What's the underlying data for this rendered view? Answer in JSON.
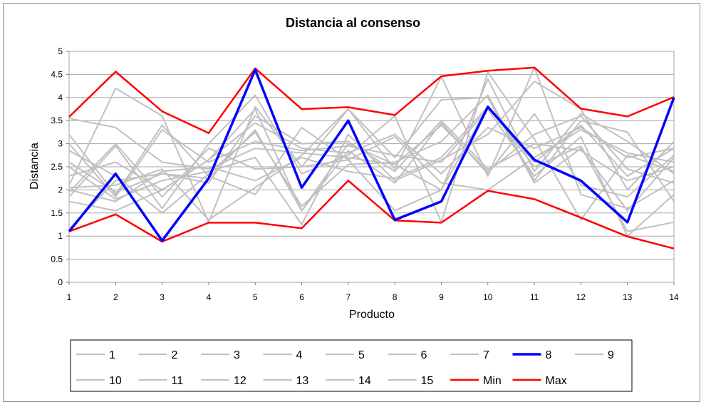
{
  "chart_data": {
    "type": "line",
    "title": "Distancia al consenso",
    "xlabel": "Producto",
    "ylabel": "Distancia",
    "x": [
      1,
      2,
      3,
      4,
      5,
      6,
      7,
      8,
      9,
      10,
      11,
      12,
      13,
      14
    ],
    "x_tick_labels": [
      "1",
      "2",
      "3",
      "4",
      "5",
      "6",
      "7",
      "8",
      "9",
      "10",
      "11",
      "12",
      "13",
      "14"
    ],
    "y_tick_labels": [
      "0",
      "0.5",
      "1",
      "1.5",
      "2",
      "2.5",
      "3",
      "3.5",
      "4",
      "4.5",
      "5"
    ],
    "ylim": [
      0,
      5
    ],
    "grid": "horizontal",
    "legend_position": "bottom",
    "series": [
      {
        "name": "1",
        "color": "#c0c0c0",
        "values": [
          3.55,
          3.35,
          2.6,
          2.45,
          2.9,
          2.8,
          2.7,
          2.55,
          3.4,
          2.4,
          3.2,
          3.6,
          2.45,
          2.15
        ]
      },
      {
        "name": "2",
        "color": "#c0c0c0",
        "values": [
          1.15,
          2.2,
          2.35,
          2.25,
          3.3,
          1.55,
          3.0,
          2.55,
          2.0,
          3.8,
          2.6,
          3.4,
          2.3,
          2.9
        ]
      },
      {
        "name": "3",
        "color": "#c0c0c0",
        "values": [
          3.2,
          1.9,
          3.4,
          2.3,
          1.9,
          3.35,
          2.65,
          3.15,
          2.15,
          2.0,
          2.7,
          3.3,
          2.8,
          2.6
        ]
      },
      {
        "name": "4",
        "color": "#c0c0c0",
        "values": [
          2.1,
          4.2,
          3.6,
          1.3,
          3.8,
          2.5,
          3.75,
          2.45,
          4.45,
          2.3,
          4.65,
          1.9,
          1.6,
          2.2
        ]
      },
      {
        "name": "5",
        "color": "#c0c0c0",
        "values": [
          2.0,
          1.75,
          2.4,
          2.5,
          2.2,
          2.7,
          2.4,
          2.25,
          2.7,
          3.8,
          2.5,
          2.95,
          1.1,
          1.3
        ]
      },
      {
        "name": "6",
        "color": "#c0c0c0",
        "values": [
          2.85,
          2.3,
          1.5,
          2.35,
          3.25,
          1.65,
          2.55,
          2.6,
          3.05,
          4.05,
          2.2,
          3.5,
          3.25,
          1.75
        ]
      },
      {
        "name": "7",
        "color": "#c0c0c0",
        "values": [
          1.75,
          1.55,
          2.0,
          2.65,
          3.75,
          1.55,
          2.85,
          2.15,
          3.45,
          2.35,
          3.65,
          2.1,
          1.85,
          2.75
        ]
      },
      {
        "name": "8",
        "color": "#0000ff",
        "values": [
          1.1,
          2.35,
          0.9,
          2.25,
          4.6,
          2.05,
          3.5,
          1.35,
          1.75,
          3.8,
          2.65,
          2.2,
          1.3,
          4.0
        ]
      },
      {
        "name": "9",
        "color": "#c0c0c0",
        "values": [
          2.3,
          2.6,
          2.0,
          2.65,
          3.45,
          2.9,
          2.8,
          3.2,
          2.35,
          3.35,
          2.9,
          3.35,
          2.7,
          2.9
        ]
      },
      {
        "name": "10",
        "color": "#c0c0c0",
        "values": [
          2.6,
          1.95,
          2.35,
          2.15,
          3.6,
          3.0,
          3.05,
          2.4,
          3.5,
          2.45,
          3.0,
          2.85,
          2.2,
          2.5
        ]
      },
      {
        "name": "11",
        "color": "#c0c0c0",
        "values": [
          1.95,
          3.0,
          1.85,
          2.9,
          2.45,
          2.5,
          2.65,
          1.55,
          2.0,
          4.4,
          2.4,
          3.65,
          3.05,
          2.35
        ]
      },
      {
        "name": "12",
        "color": "#c0c0c0",
        "values": [
          3.0,
          1.85,
          3.3,
          2.6,
          3.05,
          2.85,
          2.95,
          2.75,
          2.6,
          3.75,
          2.3,
          3.15,
          1.0,
          1.9
        ]
      },
      {
        "name": "13",
        "color": "#c0c0c0",
        "values": [
          2.05,
          2.1,
          2.45,
          1.35,
          2.05,
          2.75,
          3.75,
          2.7,
          3.95,
          4.0,
          2.15,
          2.9,
          1.55,
          2.7
        ]
      },
      {
        "name": "14",
        "color": "#c0c0c0",
        "values": [
          1.85,
          2.95,
          1.6,
          3.0,
          4.05,
          2.35,
          2.75,
          3.6,
          1.3,
          4.55,
          3.1,
          1.35,
          2.75,
          2.4
        ]
      },
      {
        "name": "15",
        "color": "#c0c0c0",
        "values": [
          2.5,
          1.8,
          2.2,
          2.4,
          2.7,
          1.25,
          3.2,
          2.2,
          2.65,
          3.2,
          4.35,
          3.75,
          2.0,
          3.05
        ]
      },
      {
        "name": "Min",
        "color": "#ff0000",
        "values": [
          1.1,
          1.47,
          0.88,
          1.29,
          1.29,
          1.17,
          2.2,
          1.34,
          1.29,
          1.98,
          1.8,
          1.4,
          0.99,
          0.73
        ]
      },
      {
        "name": "Max",
        "color": "#ff0000",
        "values": [
          3.58,
          4.56,
          3.7,
          3.23,
          4.63,
          3.75,
          3.79,
          3.62,
          4.46,
          4.58,
          4.65,
          3.76,
          3.59,
          4.01
        ]
      }
    ]
  }
}
